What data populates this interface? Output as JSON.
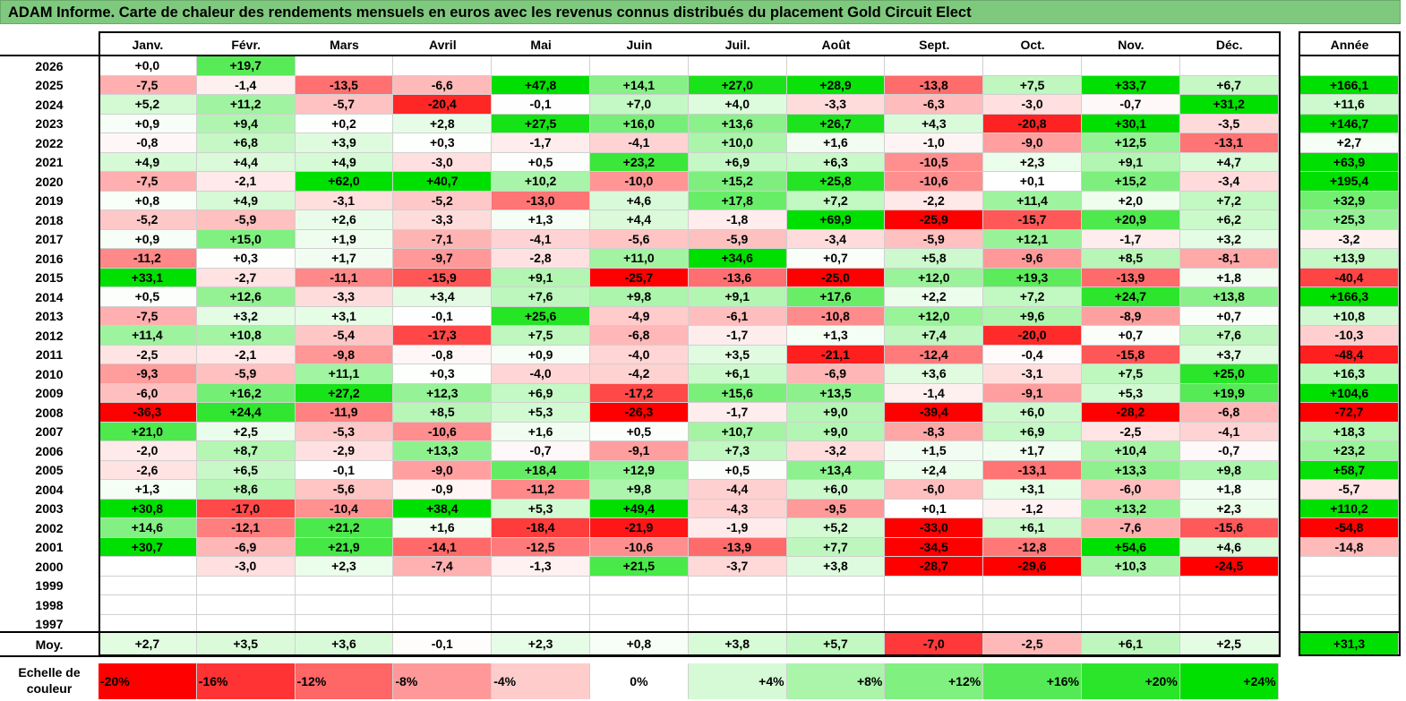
{
  "title": "ADAM Informe. Carte de chaleur des rendements mensuels en euros avec les revenus connus distribués du placement Gold Circuit Elect",
  "chart_data": {
    "type": "heatmap",
    "columns": [
      "Janv.",
      "Févr.",
      "Mars",
      "Avril",
      "Mai",
      "Juin",
      "Juil.",
      "Août",
      "Sept.",
      "Oct.",
      "Nov.",
      "Déc."
    ],
    "year_header": "Année",
    "rows": [
      {
        "year": "2026",
        "months": [
          "+0,0",
          "+19,7",
          "",
          "",
          "",
          "",
          "",
          "",
          "",
          "",
          "",
          ""
        ],
        "total": ""
      },
      {
        "year": "2025",
        "months": [
          "-7,5",
          "-1,4",
          "-13,5",
          "-6,6",
          "+47,8",
          "+14,1",
          "+27,0",
          "+28,9",
          "-13,8",
          "+7,5",
          "+33,7",
          "+6,7"
        ],
        "total": "+166,1"
      },
      {
        "year": "2024",
        "months": [
          "+5,2",
          "+11,2",
          "-5,7",
          "-20,4",
          "-0,1",
          "+7,0",
          "+4,0",
          "-3,3",
          "-6,3",
          "-3,0",
          "-0,7",
          "+31,2"
        ],
        "total": "+11,6"
      },
      {
        "year": "2023",
        "months": [
          "+0,9",
          "+9,4",
          "+0,2",
          "+2,8",
          "+27,5",
          "+16,0",
          "+13,6",
          "+26,7",
          "+4,3",
          "-20,8",
          "+30,1",
          "-3,5"
        ],
        "total": "+146,7"
      },
      {
        "year": "2022",
        "months": [
          "-0,8",
          "+6,8",
          "+3,9",
          "+0,3",
          "-1,7",
          "-4,1",
          "+10,0",
          "+1,6",
          "-1,0",
          "-9,0",
          "+12,5",
          "-13,1"
        ],
        "total": "+2,7"
      },
      {
        "year": "2021",
        "months": [
          "+4,9",
          "+4,4",
          "+4,9",
          "-3,0",
          "+0,5",
          "+23,2",
          "+6,9",
          "+6,3",
          "-10,5",
          "+2,3",
          "+9,1",
          "+4,7"
        ],
        "total": "+63,9"
      },
      {
        "year": "2020",
        "months": [
          "-7,5",
          "-2,1",
          "+62,0",
          "+40,7",
          "+10,2",
          "-10,0",
          "+15,2",
          "+25,8",
          "-10,6",
          "+0,1",
          "+15,2",
          "-3,4"
        ],
        "total": "+195,4"
      },
      {
        "year": "2019",
        "months": [
          "+0,8",
          "+4,9",
          "-3,1",
          "-5,2",
          "-13,0",
          "+4,6",
          "+17,8",
          "+7,2",
          "-2,2",
          "+11,4",
          "+2,0",
          "+7,2"
        ],
        "total": "+32,9"
      },
      {
        "year": "2018",
        "months": [
          "-5,2",
          "-5,9",
          "+2,6",
          "-3,3",
          "+1,3",
          "+4,4",
          "-1,8",
          "+69,9",
          "-25,9",
          "-15,7",
          "+20,9",
          "+6,2"
        ],
        "total": "+25,3"
      },
      {
        "year": "2017",
        "months": [
          "+0,9",
          "+15,0",
          "+1,9",
          "-7,1",
          "-4,1",
          "-5,6",
          "-5,9",
          "-3,4",
          "-5,9",
          "+12,1",
          "-1,7",
          "+3,2"
        ],
        "total": "-3,2"
      },
      {
        "year": "2016",
        "months": [
          "-11,2",
          "+0,3",
          "+1,7",
          "-9,7",
          "-2,8",
          "+11,0",
          "+34,6",
          "+0,7",
          "+5,8",
          "-9,6",
          "+8,5",
          "-8,1"
        ],
        "total": "+13,9"
      },
      {
        "year": "2015",
        "months": [
          "+33,1",
          "-2,7",
          "-11,1",
          "-15,9",
          "+9,1",
          "-25,7",
          "-13,6",
          "-25,0",
          "+12,0",
          "+19,3",
          "-13,9",
          "+1,8"
        ],
        "total": "-40,4"
      },
      {
        "year": "2014",
        "months": [
          "+0,5",
          "+12,6",
          "-3,3",
          "+3,4",
          "+7,6",
          "+9,8",
          "+9,1",
          "+17,6",
          "+2,2",
          "+7,2",
          "+24,7",
          "+13,8"
        ],
        "total": "+166,3"
      },
      {
        "year": "2013",
        "months": [
          "-7,5",
          "+3,2",
          "+3,1",
          "-0,1",
          "+25,6",
          "-4,9",
          "-6,1",
          "-10,8",
          "+12,0",
          "+9,6",
          "-8,9",
          "+0,7"
        ],
        "total": "+10,8"
      },
      {
        "year": "2012",
        "months": [
          "+11,4",
          "+10,8",
          "-5,4",
          "-17,3",
          "+7,5",
          "-6,8",
          "-1,7",
          "+1,3",
          "+7,4",
          "-20,0",
          "+0,7",
          "+7,6"
        ],
        "total": "-10,3"
      },
      {
        "year": "2011",
        "months": [
          "-2,5",
          "-2,1",
          "-9,8",
          "-0,8",
          "+0,9",
          "-4,0",
          "+3,5",
          "-21,1",
          "-12,4",
          "-0,4",
          "-15,8",
          "+3,7"
        ],
        "total": "-48,4"
      },
      {
        "year": "2010",
        "months": [
          "-9,3",
          "-5,9",
          "+11,1",
          "+0,3",
          "-4,0",
          "-4,2",
          "+6,1",
          "-6,9",
          "+3,6",
          "-3,1",
          "+7,5",
          "+25,0"
        ],
        "total": "+16,3"
      },
      {
        "year": "2009",
        "months": [
          "-6,0",
          "+16,2",
          "+27,2",
          "+12,3",
          "+6,9",
          "-17,2",
          "+15,6",
          "+13,5",
          "-1,4",
          "-9,1",
          "+5,3",
          "+19,9"
        ],
        "total": "+104,6"
      },
      {
        "year": "2008",
        "months": [
          "-36,3",
          "+24,4",
          "-11,9",
          "+8,5",
          "+5,3",
          "-26,3",
          "-1,7",
          "+9,0",
          "-39,4",
          "+6,0",
          "-28,2",
          "-6,8"
        ],
        "total": "-72,7"
      },
      {
        "year": "2007",
        "months": [
          "+21,0",
          "+2,5",
          "-5,3",
          "-10,6",
          "+1,6",
          "+0,5",
          "+10,7",
          "+9,0",
          "-8,3",
          "+6,9",
          "-2,5",
          "-4,1"
        ],
        "total": "+18,3"
      },
      {
        "year": "2006",
        "months": [
          "-2,0",
          "+8,7",
          "-2,9",
          "+13,3",
          "-0,7",
          "-9,1",
          "+7,3",
          "-3,2",
          "+1,5",
          "+1,7",
          "+10,4",
          "-0,7"
        ],
        "total": "+23,2"
      },
      {
        "year": "2005",
        "months": [
          "-2,6",
          "+6,5",
          "-0,1",
          "-9,0",
          "+18,4",
          "+12,9",
          "+0,5",
          "+13,4",
          "+2,4",
          "-13,1",
          "+13,3",
          "+9,8"
        ],
        "total": "+58,7"
      },
      {
        "year": "2004",
        "months": [
          "+1,3",
          "+8,6",
          "-5,6",
          "-0,9",
          "-11,2",
          "+9,8",
          "-4,4",
          "+6,0",
          "-6,0",
          "+3,1",
          "-6,0",
          "+1,8"
        ],
        "total": "-5,7"
      },
      {
        "year": "2003",
        "months": [
          "+30,8",
          "-17,0",
          "-10,4",
          "+38,4",
          "+5,3",
          "+49,4",
          "-4,3",
          "-9,5",
          "+0,1",
          "-1,2",
          "+13,2",
          "+2,3"
        ],
        "total": "+110,2"
      },
      {
        "year": "2002",
        "months": [
          "+14,6",
          "-12,1",
          "+21,2",
          "+1,6",
          "-18,4",
          "-21,9",
          "-1,9",
          "+5,2",
          "-33,0",
          "+6,1",
          "-7,6",
          "-15,6"
        ],
        "total": "-54,8"
      },
      {
        "year": "2001",
        "months": [
          "+30,7",
          "-6,9",
          "+21,9",
          "-14,1",
          "-12,5",
          "-10,6",
          "-13,9",
          "+7,7",
          "-34,5",
          "-12,8",
          "+54,6",
          "+4,6"
        ],
        "total": "-14,8"
      },
      {
        "year": "2000",
        "months": [
          "",
          "-3,0",
          "+2,3",
          "-7,4",
          "-1,3",
          "+21,5",
          "-3,7",
          "+3,8",
          "-28,7",
          "-29,6",
          "+10,3",
          "-24,5"
        ],
        "total": ""
      },
      {
        "year": "1999",
        "months": [
          "",
          "",
          "",
          "",
          "",
          "",
          "",
          "",
          "",
          "",
          "",
          ""
        ],
        "total": ""
      },
      {
        "year": "1998",
        "months": [
          "",
          "",
          "",
          "",
          "",
          "",
          "",
          "",
          "",
          "",
          "",
          ""
        ],
        "total": ""
      },
      {
        "year": "1997",
        "months": [
          "",
          "",
          "",
          "",
          "",
          "",
          "",
          "",
          "",
          "",
          "",
          ""
        ],
        "total": ""
      }
    ],
    "average": {
      "label": "Moy.",
      "months": [
        "+2,7",
        "+3,5",
        "+3,6",
        "-0,1",
        "+2,3",
        "+0,8",
        "+3,8",
        "+5,7",
        "-7,0",
        "-2,5",
        "+6,1",
        "+2,5"
      ],
      "total": "+31,3"
    },
    "scale": {
      "label_line1": "Echelle de",
      "label_line2": "couleur",
      "steps": [
        "-20%",
        "-16%",
        "-12%",
        "-8%",
        "-4%",
        "0%",
        "+4%",
        "+8%",
        "+12%",
        "+16%",
        "+20%",
        "+24%"
      ]
    }
  },
  "colors": {
    "title_bg": "#7fc97f",
    "neg_max": "#ff0000",
    "pos_max": "#00e000",
    "neutral": "#ffffff"
  }
}
